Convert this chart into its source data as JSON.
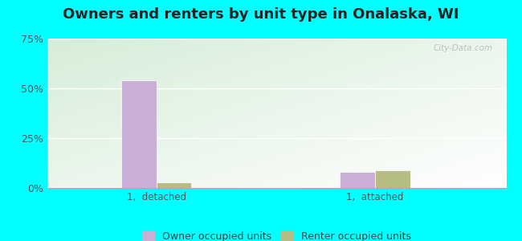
{
  "title": "Owners and renters by unit type in Onalaska, WI",
  "title_fontsize": 13,
  "categories": [
    "1,  detached",
    "1,  attached"
  ],
  "owner_values": [
    54,
    8
  ],
  "renter_values": [
    3,
    9
  ],
  "owner_color": "#c9aed6",
  "renter_color": "#b5bc84",
  "ylim": [
    0,
    75
  ],
  "yticks": [
    0,
    25,
    50,
    75
  ],
  "ytick_labels": [
    "0%",
    "25%",
    "50%",
    "75%"
  ],
  "bar_width": 0.32,
  "outer_bg": "#00ffff",
  "legend_labels": [
    "Owner occupied units",
    "Renter occupied units"
  ],
  "watermark": "City-Data.com",
  "group_positions": [
    1.0,
    3.0
  ],
  "xlim": [
    0,
    4.2
  ]
}
